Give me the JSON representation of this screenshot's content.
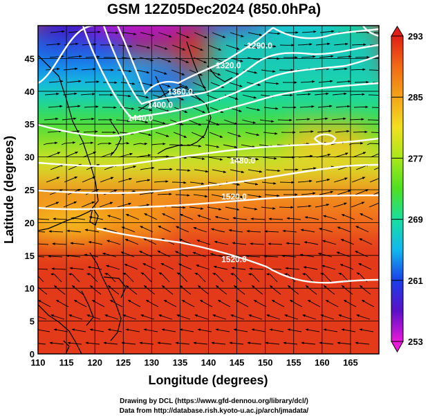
{
  "title": "GSM 12Z05Dec2024 (850.0hPa)",
  "map": {
    "xlabel": "Longitude (degrees)",
    "ylabel": "Latitude  (degrees)",
    "xlim": [
      110,
      170
    ],
    "ylim": [
      0,
      50
    ],
    "xticks": [
      110,
      115,
      120,
      125,
      130,
      135,
      140,
      145,
      150,
      155,
      160,
      165
    ],
    "yticks": [
      0,
      5,
      10,
      15,
      20,
      25,
      30,
      35,
      40,
      45
    ],
    "grid": "on"
  },
  "colorbar": {
    "ticks": [
      253,
      261,
      269,
      277,
      285,
      293
    ],
    "colors": [
      "#e81ad9",
      "#5a10c8",
      "#1a3fe8",
      "#10b8ef",
      "#18e0a0",
      "#4ee020",
      "#a8e818",
      "#f2e020",
      "#f5a418",
      "#f26a14",
      "#e02018"
    ]
  },
  "contours": [
    {
      "label": "1290.0",
      "lon": 149,
      "lat": 46.5
    },
    {
      "label": "1320.0",
      "lon": 143.5,
      "lat": 43.5
    },
    {
      "label": "1360.0",
      "lon": 135,
      "lat": 39.5
    },
    {
      "label": "1400.0",
      "lon": 131.5,
      "lat": 37.5
    },
    {
      "label": "1440.0",
      "lon": 128,
      "lat": 35.5
    },
    {
      "label": "1480.0",
      "lon": 146,
      "lat": 29
    },
    {
      "label": "1520.0",
      "lon": 144.5,
      "lat": 23.5
    },
    {
      "label": "1520.0",
      "lon": 144.5,
      "lat": 14
    }
  ],
  "credits": {
    "drawing": "Drawing by DCL (https://www.gfd-dennou.org/library/dcl/)",
    "data": "Data from http://database.rish.kyoto-u.ac.jp/arch/jmadata/"
  }
}
